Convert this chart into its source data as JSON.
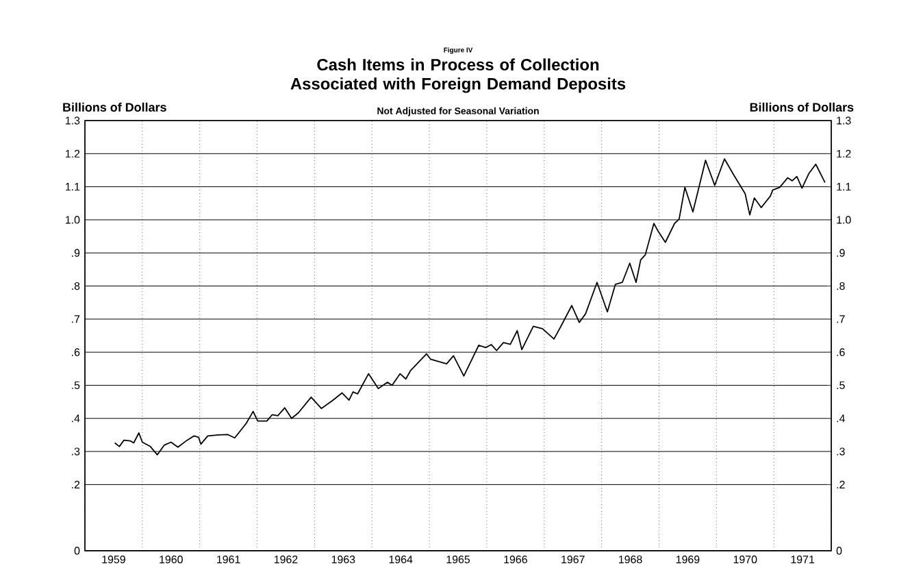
{
  "chart_data": {
    "type": "line",
    "title": "Cash Items in Process of Collection Associated with Foreign Demand Deposits",
    "subtitle": "Not Adjusted for Seasonal Variation",
    "annotations": [
      "Figure IV"
    ],
    "ylabel": "Billions of Dollars",
    "y2label": "Billions of Dollars",
    "x": [
      1959.52,
      1959.6,
      1959.68,
      1959.79,
      1959.85,
      1959.94,
      1960.0,
      1960.14,
      1960.26,
      1960.38,
      1960.5,
      1960.62,
      1960.78,
      1960.9,
      1960.98,
      1961.02,
      1961.14,
      1961.33,
      1961.49,
      1961.61,
      1961.81,
      1961.93,
      1962.01,
      1962.17,
      1962.26,
      1962.36,
      1962.48,
      1962.6,
      1962.72,
      1962.94,
      1963.12,
      1963.32,
      1963.48,
      1963.6,
      1963.67,
      1963.75,
      1963.94,
      1964.11,
      1964.27,
      1964.35,
      1964.49,
      1964.59,
      1964.67,
      1964.95,
      1965.02,
      1965.3,
      1965.42,
      1965.6,
      1965.86,
      1965.98,
      1966.08,
      1966.17,
      1966.29,
      1966.41,
      1966.53,
      1966.61,
      1966.81,
      1966.97,
      1967.17,
      1967.29,
      1967.48,
      1967.61,
      1967.72,
      1967.92,
      1968.1,
      1968.24,
      1968.36,
      1968.49,
      1968.6,
      1968.68,
      1968.76,
      1968.91,
      1968.99,
      1969.11,
      1969.27,
      1969.35,
      1969.45,
      1969.59,
      1969.81,
      1969.97,
      1970.14,
      1970.3,
      1970.5,
      1970.58,
      1970.66,
      1970.78,
      1970.94,
      1970.98,
      1971.1,
      1971.24,
      1971.32,
      1971.4,
      1971.49,
      1971.61,
      1971.73,
      1971.89
    ],
    "series": [
      {
        "color": "#000000",
        "values": [
          0.326,
          0.315,
          0.334,
          0.332,
          0.326,
          0.356,
          0.328,
          0.315,
          0.29,
          0.319,
          0.328,
          0.313,
          0.334,
          0.347,
          0.343,
          0.322,
          0.347,
          0.35,
          0.351,
          0.341,
          0.385,
          0.421,
          0.392,
          0.392,
          0.411,
          0.408,
          0.432,
          0.4,
          0.417,
          0.464,
          0.43,
          0.455,
          0.477,
          0.455,
          0.48,
          0.474,
          0.535,
          0.49,
          0.509,
          0.5,
          0.535,
          0.519,
          0.544,
          0.595,
          0.579,
          0.565,
          0.589,
          0.528,
          0.621,
          0.614,
          0.623,
          0.605,
          0.629,
          0.624,
          0.665,
          0.608,
          0.678,
          0.671,
          0.64,
          0.678,
          0.741,
          0.69,
          0.716,
          0.811,
          0.722,
          0.805,
          0.811,
          0.869,
          0.811,
          0.879,
          0.894,
          0.989,
          0.964,
          0.932,
          0.989,
          1.002,
          1.098,
          1.024,
          1.18,
          1.104,
          1.184,
          1.136,
          1.079,
          1.015,
          1.066,
          1.037,
          1.072,
          1.09,
          1.098,
          1.127,
          1.118,
          1.131,
          1.096,
          1.14,
          1.168,
          1.113
        ]
      }
    ],
    "xlim": [
      1959,
      1972
    ],
    "xticks": [
      {
        "value": 1959,
        "label": null
      },
      {
        "value": 1960,
        "label": null
      },
      {
        "value": 1961,
        "label": null
      },
      {
        "value": 1962,
        "label": null
      },
      {
        "value": 1963,
        "label": null
      },
      {
        "value": 1964,
        "label": null
      },
      {
        "value": 1965,
        "label": null
      },
      {
        "value": 1966,
        "label": null
      },
      {
        "value": 1967,
        "label": null
      },
      {
        "value": 1968,
        "label": null
      },
      {
        "value": 1969,
        "label": null
      },
      {
        "value": 1970,
        "label": null
      },
      {
        "value": 1971,
        "label": null
      },
      {
        "value": 1972,
        "label": null
      },
      {
        "value": 1959.5,
        "label": "1959"
      },
      {
        "value": 1960.5,
        "label": "1960"
      },
      {
        "value": 1961.5,
        "label": "1961"
      },
      {
        "value": 1962.5,
        "label": "1962"
      },
      {
        "value": 1963.5,
        "label": "1963"
      },
      {
        "value": 1964.5,
        "label": "1964"
      },
      {
        "value": 1965.5,
        "label": "1965"
      },
      {
        "value": 1966.5,
        "label": "1966"
      },
      {
        "value": 1967.5,
        "label": "1967"
      },
      {
        "value": 1968.5,
        "label": "1968"
      },
      {
        "value": 1969.5,
        "label": "1969"
      },
      {
        "value": 1970.5,
        "label": "1970"
      },
      {
        "value": 1971.5,
        "label": "1971"
      }
    ],
    "ylim": [
      0,
      1.3
    ],
    "yticks": [
      0,
      {
        "value": 0.2,
        "label": ".2"
      },
      {
        "value": 0.3,
        "label": ".3"
      },
      {
        "value": 0.4,
        "label": ".4"
      },
      {
        "value": 0.5,
        "label": ".5"
      },
      {
        "value": 0.6,
        "label": ".6"
      },
      {
        "value": 0.7,
        "label": ".7"
      },
      {
        "value": 0.8,
        "label": ".8"
      },
      {
        "value": 0.9,
        "label": ".9"
      },
      {
        "value": 1.0,
        "label": "1.0"
      },
      1.1,
      1.2,
      1.3
    ],
    "y2lim": [
      0,
      1.3
    ],
    "y2ticks": [
      0,
      {
        "value": 0.2,
        "label": ".2"
      },
      {
        "value": 0.3,
        "label": ".3"
      },
      {
        "value": 0.4,
        "label": ".4"
      },
      {
        "value": 0.5,
        "label": ".5"
      },
      {
        "value": 0.6,
        "label": ".6"
      },
      {
        "value": 0.7,
        "label": ".7"
      },
      {
        "value": 0.8,
        "label": ".8"
      },
      {
        "value": 0.9,
        "label": ".9"
      },
      {
        "value": 1.0,
        "label": "1.0"
      },
      1.1,
      1.2,
      1.3
    ],
    "grid": true,
    "marker": "none",
    "line_style": "solid"
  }
}
